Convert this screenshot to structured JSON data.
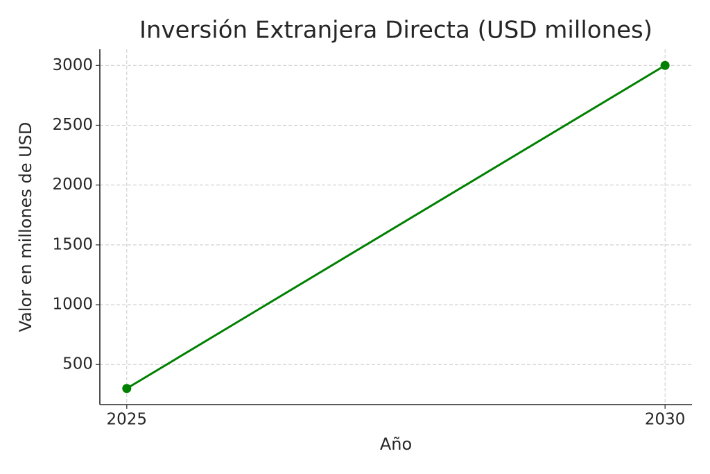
{
  "chart_data": {
    "type": "line",
    "title": "Inversión Extranjera Directa (USD millones)",
    "x_label": "Año",
    "y_label": "Valor en millones de USD",
    "x": [
      2025,
      2030
    ],
    "values": [
      300,
      3000
    ],
    "color": "#008000",
    "xlim": [
      2024.75,
      2030.25
    ],
    "xticks": [
      2025,
      2030
    ],
    "ylim": [
      165,
      3135
    ],
    "yticks": [
      500,
      1000,
      1500,
      2000,
      2500,
      3000
    ],
    "grid": true
  }
}
